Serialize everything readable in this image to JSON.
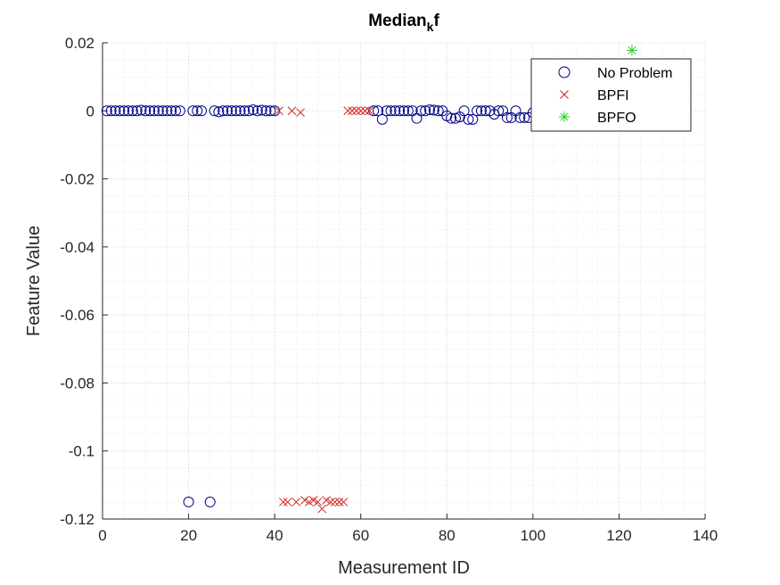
{
  "chart_data": {
    "type": "scatter",
    "title": "Median",
    "title_subscript": "k",
    "title_suffix": "f",
    "xlabel": "Measurement ID",
    "ylabel": "Feature Value",
    "xlim": [
      0,
      140
    ],
    "ylim": [
      -0.12,
      0.02
    ],
    "xticks": [
      0,
      20,
      40,
      60,
      80,
      100,
      120,
      140
    ],
    "xtick_labels": [
      "0",
      "20",
      "40",
      "60",
      "80",
      "100",
      "120",
      "140"
    ],
    "yticks": [
      0.02,
      0,
      -0.02,
      -0.04,
      -0.06,
      -0.08,
      -0.1,
      -0.12
    ],
    "ytick_labels": [
      "0.02",
      "0",
      "-0.02",
      "-0.04",
      "-0.06",
      "-0.08",
      "-0.1",
      "-0.12"
    ],
    "grid": "on, with minor grid",
    "legend_position": "top-right",
    "series": [
      {
        "name": "No Problem",
        "marker": "circle",
        "color": "#00008b",
        "points": [
          [
            1,
            0
          ],
          [
            2,
            0
          ],
          [
            3,
            0
          ],
          [
            4,
            0
          ],
          [
            5,
            0
          ],
          [
            6,
            0
          ],
          [
            7,
            0
          ],
          [
            8,
            0
          ],
          [
            9,
            0.0002
          ],
          [
            10,
            0
          ],
          [
            11,
            0
          ],
          [
            12,
            0
          ],
          [
            13,
            0
          ],
          [
            14,
            0
          ],
          [
            15,
            0
          ],
          [
            16,
            0
          ],
          [
            17,
            0
          ],
          [
            18,
            0
          ],
          [
            20,
            -0.115
          ],
          [
            21,
            0
          ],
          [
            22,
            0
          ],
          [
            23,
            0
          ],
          [
            25,
            -0.115
          ],
          [
            26,
            0
          ],
          [
            27,
            -0.0003
          ],
          [
            28,
            0
          ],
          [
            29,
            0
          ],
          [
            30,
            0
          ],
          [
            31,
            0
          ],
          [
            32,
            0
          ],
          [
            33,
            0
          ],
          [
            34,
            0
          ],
          [
            35,
            0.0003
          ],
          [
            36,
            0
          ],
          [
            37,
            0.0002
          ],
          [
            38,
            0
          ],
          [
            39,
            0
          ],
          [
            40,
            0
          ],
          [
            63,
            0
          ],
          [
            64,
            0
          ],
          [
            65,
            -0.0025
          ],
          [
            66,
            0
          ],
          [
            67,
            0
          ],
          [
            68,
            0
          ],
          [
            69,
            0
          ],
          [
            70,
            0
          ],
          [
            71,
            0
          ],
          [
            72,
            0
          ],
          [
            73,
            -0.0022
          ],
          [
            74,
            0
          ],
          [
            75,
            0
          ],
          [
            76,
            0.0003
          ],
          [
            77,
            0.0002
          ],
          [
            78,
            0
          ],
          [
            79,
            0
          ],
          [
            80,
            -0.0015
          ],
          [
            81,
            -0.0022
          ],
          [
            82,
            -0.0022
          ],
          [
            83,
            -0.0018
          ],
          [
            84,
            0
          ],
          [
            85,
            -0.0025
          ],
          [
            86,
            -0.0025
          ],
          [
            87,
            0
          ],
          [
            88,
            0
          ],
          [
            89,
            0
          ],
          [
            90,
            0
          ],
          [
            91,
            -0.001
          ],
          [
            92,
            0
          ],
          [
            93,
            0
          ],
          [
            94,
            -0.002
          ],
          [
            95,
            -0.002
          ],
          [
            96,
            0
          ],
          [
            97,
            -0.002
          ],
          [
            98,
            -0.002
          ],
          [
            99,
            -0.002
          ],
          [
            100,
            -0.0005
          ]
        ]
      },
      {
        "name": "BPFI",
        "marker": "x",
        "color": "#cd2626",
        "points": [
          [
            41,
            0
          ],
          [
            42,
            -0.115
          ],
          [
            43,
            -0.115
          ],
          [
            44,
            0
          ],
          [
            45,
            -0.115
          ],
          [
            46,
            -0.0005
          ],
          [
            47,
            -0.1145
          ],
          [
            48,
            -0.115
          ],
          [
            49,
            -0.1145
          ],
          [
            50,
            -0.115
          ],
          [
            51,
            -0.117
          ],
          [
            52,
            -0.1145
          ],
          [
            53,
            -0.115
          ],
          [
            54,
            -0.115
          ],
          [
            55,
            -0.115
          ],
          [
            56,
            -0.115
          ],
          [
            57,
            0
          ],
          [
            58,
            0
          ],
          [
            59,
            0
          ],
          [
            60,
            0
          ],
          [
            61,
            0
          ],
          [
            62,
            0
          ]
        ]
      },
      {
        "name": "BPFO",
        "marker": "asterisk",
        "color": "#2ecc2e",
        "points": [
          [
            123,
            0.0178
          ]
        ]
      }
    ],
    "legend": [
      {
        "label": "No Problem",
        "marker": "circle",
        "color": "#00008b"
      },
      {
        "label": "BPFI",
        "marker": "x",
        "color": "#cd2626"
      },
      {
        "label": "BPFO",
        "marker": "asterisk",
        "color": "#2ecc2e"
      }
    ]
  }
}
